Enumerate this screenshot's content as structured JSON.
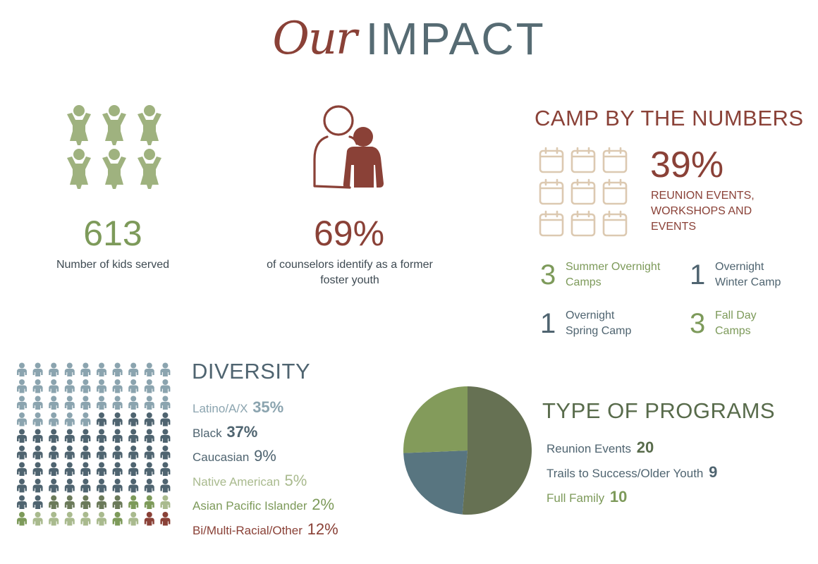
{
  "title": {
    "script": "Our",
    "main": "IMPACT"
  },
  "colors": {
    "rust": "#8a4137",
    "sage": "#9fb27f",
    "olive": "#7d9a5a",
    "slate": "#4f6470",
    "light_slate": "#8ba4af",
    "tan": "#dcc9b1",
    "pie_dark": "#667153",
    "pie_blue": "#587580",
    "pie_green": "#839b5b"
  },
  "icons": {
    "kids": "children-cheering-icon",
    "counselor": "mentor-and-youth-icon",
    "calendar": "calendar-icon",
    "person": "person-silhouette-icon"
  },
  "kids": {
    "number": "613",
    "caption": "Number of kids served"
  },
  "counselors": {
    "number": "69%",
    "caption": "of counselors identify as a former foster youth"
  },
  "camp": {
    "heading": "CAMP BY THE NUMBERS",
    "calendar_count": 9,
    "percent": "39%",
    "percent_caption": "REUNION EVENTS, WORKSHOPS AND EVENTS",
    "items": [
      {
        "count": "3",
        "label": "Summer Overnight Camps",
        "color": "#7d9a5a"
      },
      {
        "count": "1",
        "label": "Overnight Winter Camp",
        "color": "#4f6470"
      },
      {
        "count": "1",
        "label": "Overnight Spring Camp",
        "color": "#4f6470"
      },
      {
        "count": "3",
        "label": "Fall Day Camps",
        "color": "#7d9a5a"
      }
    ]
  },
  "diversity": {
    "heading": "DIVERSITY",
    "groups": [
      {
        "label": "Latino/A/X",
        "pct": "35%",
        "value": 35,
        "color": "#8ba4af",
        "bold": true
      },
      {
        "label": "Black",
        "pct": "37%",
        "value": 37,
        "color": "#4f6470",
        "bold": true
      },
      {
        "label": "Caucasian",
        "pct": "9%",
        "value": 9,
        "color": "#4f6470",
        "bold": false
      },
      {
        "label": "Native American",
        "pct": "5%",
        "value": 5,
        "color": "#a9ba8e",
        "bold": false
      },
      {
        "label": "Asian Pacific Islander",
        "pct": "2%",
        "value": 2,
        "color": "#7d9a5a",
        "bold": false
      },
      {
        "label": "Bi/Multi-Racial/Other",
        "pct": "12%",
        "value": 12,
        "color": "#8a4137",
        "bold": false
      }
    ]
  },
  "programs": {
    "heading": "TYPE OF PROGRAMS",
    "items": [
      {
        "label": "Reunion Events",
        "value": 20,
        "color": "#667153"
      },
      {
        "label": "Trails to Success/Older Youth",
        "value": 9,
        "color": "#587580"
      },
      {
        "label": "Full Family",
        "value": 10,
        "color": "#839b5b"
      }
    ]
  }
}
